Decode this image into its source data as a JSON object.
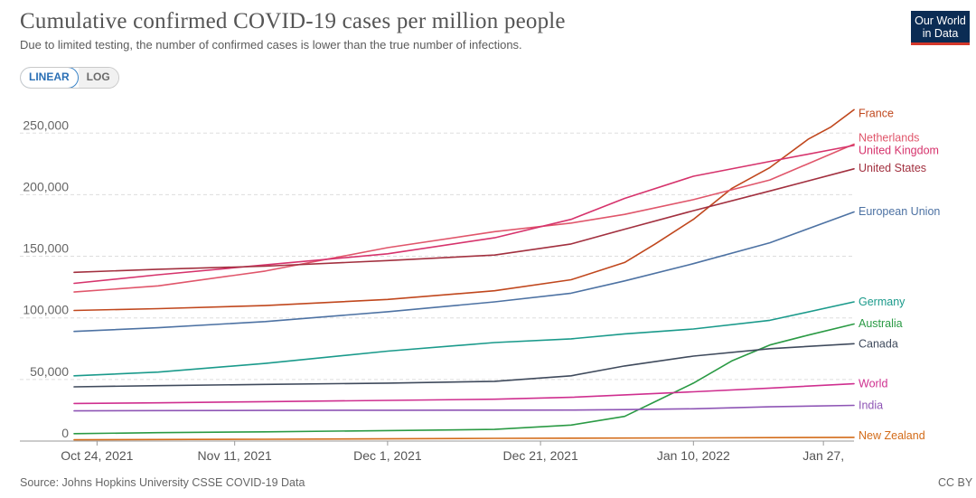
{
  "header": {
    "title": "Cumulative confirmed COVID-19 cases per million people",
    "subtitle": "Due to limited testing, the number of confirmed cases is lower than the true number of infections.",
    "logo_line1": "Our World",
    "logo_line2": "in Data"
  },
  "scale_toggle": {
    "linear_label": "LINEAR",
    "log_label": "LOG",
    "selected": "LINEAR"
  },
  "footer": {
    "source": "Source: Johns Hopkins University CSSE COVID-19 Data",
    "license": "CC BY"
  },
  "chart_data": {
    "type": "line",
    "x_unit": "date",
    "x_ticks": [
      "Oct 24, 2021",
      "Nov 11, 2021",
      "Dec 1, 2021",
      "Dec 21, 2021",
      "Jan 10, 2022",
      "Jan 27,"
    ],
    "x_tick_dates": [
      "2021-10-24",
      "2021-11-11",
      "2021-12-01",
      "2021-12-21",
      "2022-01-10",
      "2022-01-27"
    ],
    "xlim": [
      "2021-10-21",
      "2022-01-31"
    ],
    "y_ticks": [
      0,
      50000,
      100000,
      150000,
      200000,
      250000
    ],
    "y_tick_labels": [
      "0",
      "50,000",
      "100,000",
      "150,000",
      "200,000",
      "250,000"
    ],
    "ylim": [
      0,
      270000
    ],
    "grid": "horizontal dashed",
    "legend": "labels at right end of lines",
    "series": [
      {
        "name": "France",
        "color": "#c0471d",
        "dates": [
          "2021-10-21",
          "2021-11-01",
          "2021-11-15",
          "2021-12-01",
          "2021-12-15",
          "2021-12-25",
          "2022-01-01",
          "2022-01-05",
          "2022-01-10",
          "2022-01-15",
          "2022-01-20",
          "2022-01-25",
          "2022-01-28",
          "2022-01-31"
        ],
        "values": [
          106000,
          107500,
          110000,
          115000,
          122000,
          131000,
          145000,
          160000,
          180000,
          205000,
          222000,
          245000,
          255000,
          269000
        ]
      },
      {
        "name": "Netherlands",
        "color": "#e0566b",
        "dates": [
          "2021-10-21",
          "2021-11-01",
          "2021-11-15",
          "2021-12-01",
          "2021-12-15",
          "2021-12-25",
          "2022-01-01",
          "2022-01-10",
          "2022-01-20",
          "2022-01-31"
        ],
        "values": [
          121000,
          126000,
          138000,
          157000,
          170000,
          177000,
          184000,
          196000,
          212000,
          241000
        ]
      },
      {
        "name": "United Kingdom",
        "color": "#d6336c",
        "dates": [
          "2021-10-21",
          "2021-11-01",
          "2021-11-15",
          "2021-12-01",
          "2021-12-15",
          "2021-12-25",
          "2022-01-01",
          "2022-01-10",
          "2022-01-20",
          "2022-01-31"
        ],
        "values": [
          128000,
          135000,
          143000,
          152000,
          165000,
          180000,
          197000,
          215000,
          227000,
          240000
        ]
      },
      {
        "name": "United States",
        "color": "#a2303f",
        "dates": [
          "2021-10-21",
          "2021-11-01",
          "2021-11-15",
          "2021-12-01",
          "2021-12-15",
          "2021-12-25",
          "2022-01-01",
          "2022-01-10",
          "2022-01-20",
          "2022-01-31"
        ],
        "values": [
          137000,
          139500,
          142000,
          146500,
          151000,
          160000,
          172000,
          187000,
          203000,
          221000
        ]
      },
      {
        "name": "European Union",
        "color": "#4d72a3",
        "dates": [
          "2021-10-21",
          "2021-11-01",
          "2021-11-15",
          "2021-12-01",
          "2021-12-15",
          "2021-12-25",
          "2022-01-01",
          "2022-01-10",
          "2022-01-20",
          "2022-01-31"
        ],
        "values": [
          89000,
          92000,
          97000,
          105000,
          113000,
          120000,
          130000,
          144000,
          161000,
          186000
        ]
      },
      {
        "name": "Germany",
        "color": "#1a9a8b",
        "dates": [
          "2021-10-21",
          "2021-11-01",
          "2021-11-15",
          "2021-12-01",
          "2021-12-15",
          "2021-12-25",
          "2022-01-01",
          "2022-01-10",
          "2022-01-20",
          "2022-01-31"
        ],
        "values": [
          53000,
          56000,
          63000,
          73000,
          80000,
          83000,
          87000,
          91000,
          98000,
          113000
        ]
      },
      {
        "name": "Australia",
        "color": "#2a9a44",
        "dates": [
          "2021-10-21",
          "2021-11-01",
          "2021-11-15",
          "2021-12-01",
          "2021-12-15",
          "2021-12-25",
          "2022-01-01",
          "2022-01-05",
          "2022-01-10",
          "2022-01-15",
          "2022-01-20",
          "2022-01-25",
          "2022-01-31"
        ],
        "values": [
          6000,
          6800,
          7500,
          8500,
          9500,
          13000,
          20000,
          32000,
          47000,
          65000,
          78000,
          86000,
          95000
        ]
      },
      {
        "name": "Canada",
        "color": "#3f4a5c",
        "dates": [
          "2021-10-21",
          "2021-11-01",
          "2021-11-15",
          "2021-12-01",
          "2021-12-15",
          "2021-12-25",
          "2022-01-01",
          "2022-01-10",
          "2022-01-20",
          "2022-01-31"
        ],
        "values": [
          44000,
          45000,
          46000,
          47000,
          48500,
          53000,
          61000,
          69000,
          75000,
          79000
        ]
      },
      {
        "name": "World",
        "color": "#cf2f8f",
        "dates": [
          "2021-10-21",
          "2021-11-01",
          "2021-11-15",
          "2021-12-01",
          "2021-12-15",
          "2021-12-25",
          "2022-01-01",
          "2022-01-10",
          "2022-01-20",
          "2022-01-31"
        ],
        "values": [
          30500,
          31000,
          32000,
          33000,
          34000,
          35500,
          37500,
          40000,
          43000,
          46500
        ]
      },
      {
        "name": "India",
        "color": "#8e55b5",
        "dates": [
          "2021-10-21",
          "2021-11-01",
          "2021-11-15",
          "2021-12-01",
          "2021-12-15",
          "2021-12-25",
          "2022-01-01",
          "2022-01-10",
          "2022-01-20",
          "2022-01-31"
        ],
        "values": [
          24500,
          24700,
          24900,
          25000,
          25100,
          25200,
          25500,
          26200,
          27800,
          29000
        ]
      },
      {
        "name": "New Zealand",
        "color": "#d36b18",
        "dates": [
          "2021-10-21",
          "2021-11-15",
          "2021-12-15",
          "2022-01-10",
          "2022-01-31"
        ],
        "values": [
          1000,
          1500,
          2200,
          2600,
          3000
        ]
      }
    ],
    "label_values": {
      "France": 266000,
      "Netherlands": 246000,
      "United Kingdom": 236000,
      "United States": 221500,
      "European Union": 186500,
      "Germany": 113000,
      "Australia": 95500,
      "Canada": 79000,
      "World": 46500,
      "India": 29000,
      "New Zealand": 4500
    }
  }
}
